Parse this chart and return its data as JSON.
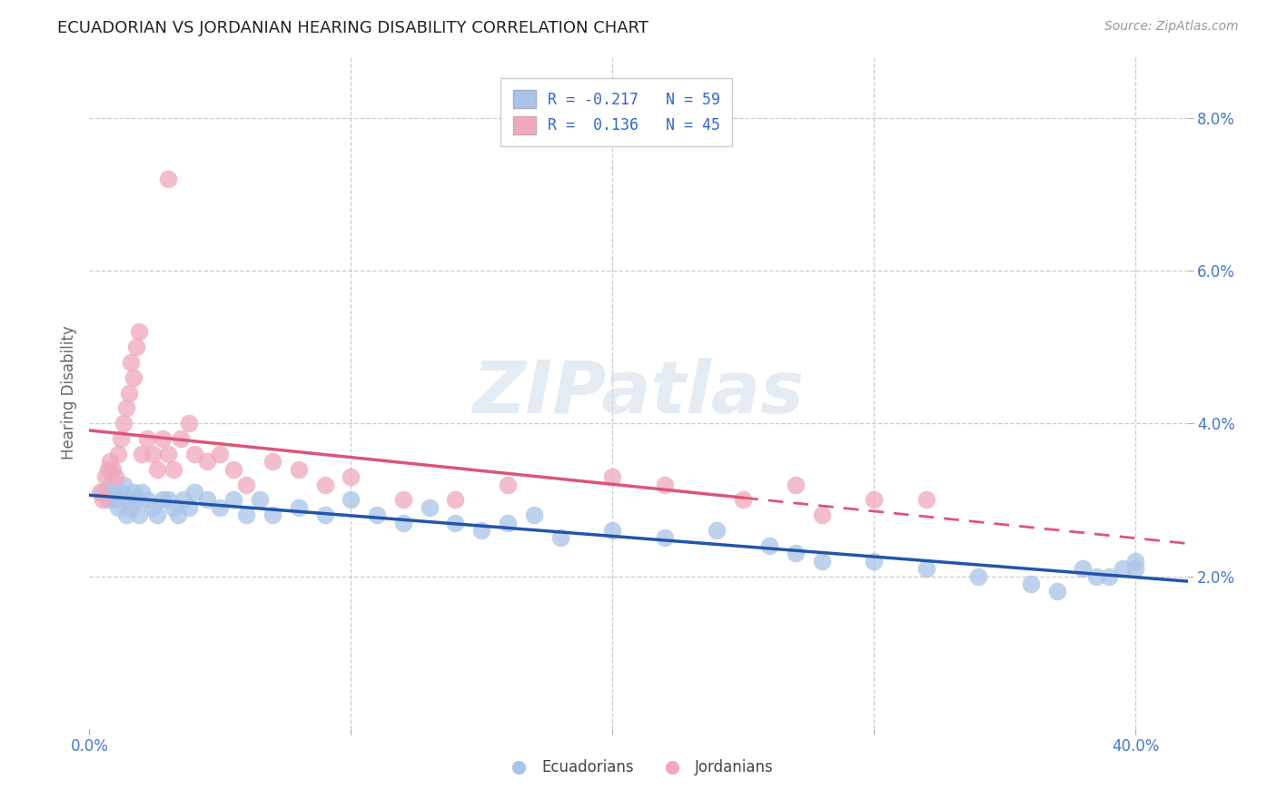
{
  "title": "ECUADORIAN VS JORDANIAN HEARING DISABILITY CORRELATION CHART",
  "source": "Source: ZipAtlas.com",
  "ylabel": "Hearing Disability",
  "xlim": [
    0.0,
    0.42
  ],
  "ylim": [
    0.0,
    0.088
  ],
  "yticks": [
    0.02,
    0.04,
    0.06,
    0.08
  ],
  "ytick_labels": [
    "2.0%",
    "4.0%",
    "6.0%",
    "8.0%"
  ],
  "xticks": [
    0.0,
    0.1,
    0.2,
    0.3,
    0.4
  ],
  "xtick_labels": [
    "0.0%",
    "",
    "",
    "",
    "40.0%"
  ],
  "blue_R": -0.217,
  "blue_N": 59,
  "pink_R": 0.136,
  "pink_N": 45,
  "blue_color": "#aac4e8",
  "pink_color": "#f0a8bc",
  "blue_line_color": "#2255aa",
  "pink_line_color": "#dd5577",
  "ecuadorians_label": "Ecuadorians",
  "jordanians_label": "Jordanians",
  "background_color": "#ffffff",
  "grid_color": "#cccccc",
  "watermark": "ZIPatlas",
  "tick_label_color": "#4477cc",
  "blue_scatter_x": [
    0.005,
    0.007,
    0.008,
    0.009,
    0.01,
    0.011,
    0.012,
    0.013,
    0.014,
    0.015,
    0.016,
    0.017,
    0.018,
    0.019,
    0.02,
    0.022,
    0.024,
    0.026,
    0.028,
    0.03,
    0.032,
    0.034,
    0.036,
    0.038,
    0.04,
    0.045,
    0.05,
    0.055,
    0.06,
    0.065,
    0.07,
    0.08,
    0.09,
    0.1,
    0.11,
    0.12,
    0.13,
    0.14,
    0.15,
    0.16,
    0.17,
    0.18,
    0.2,
    0.22,
    0.24,
    0.26,
    0.27,
    0.28,
    0.3,
    0.32,
    0.34,
    0.36,
    0.37,
    0.38,
    0.385,
    0.39,
    0.395,
    0.4,
    0.4
  ],
  "blue_scatter_y": [
    0.031,
    0.03,
    0.032,
    0.031,
    0.03,
    0.029,
    0.031,
    0.032,
    0.028,
    0.03,
    0.029,
    0.031,
    0.03,
    0.028,
    0.031,
    0.03,
    0.029,
    0.028,
    0.03,
    0.03,
    0.029,
    0.028,
    0.03,
    0.029,
    0.031,
    0.03,
    0.029,
    0.03,
    0.028,
    0.03,
    0.028,
    0.029,
    0.028,
    0.03,
    0.028,
    0.027,
    0.029,
    0.027,
    0.026,
    0.027,
    0.028,
    0.025,
    0.026,
    0.025,
    0.026,
    0.024,
    0.023,
    0.022,
    0.022,
    0.021,
    0.02,
    0.019,
    0.018,
    0.021,
    0.02,
    0.02,
    0.021,
    0.021,
    0.022
  ],
  "pink_scatter_x": [
    0.004,
    0.005,
    0.006,
    0.007,
    0.008,
    0.009,
    0.01,
    0.011,
    0.012,
    0.013,
    0.014,
    0.015,
    0.016,
    0.017,
    0.018,
    0.019,
    0.02,
    0.022,
    0.024,
    0.026,
    0.028,
    0.03,
    0.032,
    0.035,
    0.038,
    0.04,
    0.045,
    0.05,
    0.055,
    0.06,
    0.07,
    0.08,
    0.09,
    0.1,
    0.12,
    0.14,
    0.16,
    0.2,
    0.22,
    0.25,
    0.27,
    0.28,
    0.3,
    0.32,
    0.03
  ],
  "pink_scatter_y": [
    0.031,
    0.03,
    0.033,
    0.034,
    0.035,
    0.034,
    0.033,
    0.036,
    0.038,
    0.04,
    0.042,
    0.044,
    0.048,
    0.046,
    0.05,
    0.052,
    0.036,
    0.038,
    0.036,
    0.034,
    0.038,
    0.036,
    0.034,
    0.038,
    0.04,
    0.036,
    0.035,
    0.036,
    0.034,
    0.032,
    0.035,
    0.034,
    0.032,
    0.033,
    0.03,
    0.03,
    0.032,
    0.033,
    0.032,
    0.03,
    0.032,
    0.028,
    0.03,
    0.03,
    0.072
  ]
}
